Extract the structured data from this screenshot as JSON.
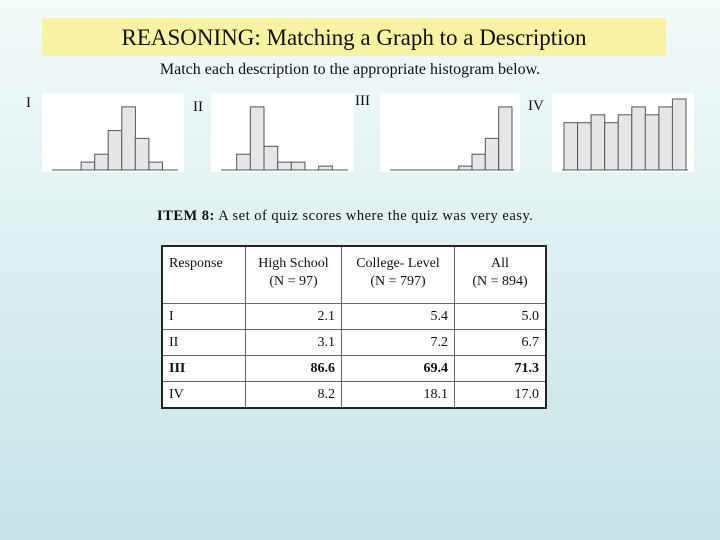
{
  "title": "REASONING: Matching a Graph to a Description",
  "instruction": "Match each description to the appropriate histogram below.",
  "histograms": [
    {
      "label": "I",
      "bars": [
        0,
        0,
        1,
        2,
        5,
        8,
        4,
        1,
        0
      ]
    },
    {
      "label": "II",
      "bars": [
        0,
        2,
        8,
        3,
        1,
        1,
        0,
        0.5,
        0
      ]
    },
    {
      "label": "III",
      "bars": [
        0,
        0,
        0,
        0,
        0,
        0.5,
        2,
        4,
        8
      ]
    },
    {
      "label": "IV",
      "bars": [
        6,
        6,
        7,
        6,
        7,
        8,
        7,
        8,
        9
      ]
    }
  ],
  "item": {
    "number_label": "ITEM 8:",
    "text": "A set of quiz scores where the quiz was very easy."
  },
  "table": {
    "headers": {
      "response": "Response",
      "high_school": "High School",
      "high_school_n": "(N = 97)",
      "college": "College- Level",
      "college_n": "(N = 797)",
      "all": "All",
      "all_n": "(N = 894)"
    },
    "rows": [
      {
        "response": "I",
        "hs": "2.1",
        "college": "5.4",
        "all": "5.0"
      },
      {
        "response": "II",
        "hs": "3.1",
        "college": "7.2",
        "all": "6.7"
      },
      {
        "response": "III",
        "hs": "86.6",
        "college": "69.4",
        "all": "71.3"
      },
      {
        "response": "IV",
        "hs": "8.2",
        "college": "18.1",
        "all": "17.0"
      }
    ]
  }
}
